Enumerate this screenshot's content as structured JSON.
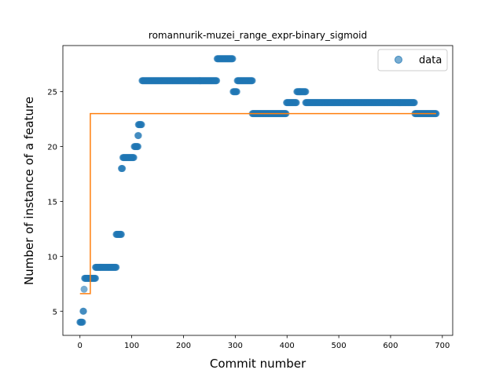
{
  "chart_data": {
    "type": "scatter",
    "title": "romannurik-muzei_range_expr-binary_sigmoid",
    "xlabel": "Commit number",
    "ylabel": "Number of instance of a feature",
    "xlim": [
      -33,
      720
    ],
    "ylim": [
      2.8,
      29.2
    ],
    "x_ticks": [
      0,
      100,
      200,
      300,
      400,
      500,
      600,
      700
    ],
    "y_ticks": [
      5,
      10,
      15,
      20,
      25
    ],
    "grid": false,
    "legend": {
      "position": "top-right",
      "entries": [
        "data"
      ]
    },
    "colors": {
      "data": "#1f77b4",
      "fit": "#ff7f0e"
    },
    "series": [
      {
        "name": "data",
        "kind": "scatter",
        "segments": [
          {
            "x_start": 0,
            "x_end": 5,
            "y": 4
          },
          {
            "x_start": 6,
            "x_end": 7,
            "y": 5
          },
          {
            "x_start": 8,
            "x_end": 8,
            "y": 7
          },
          {
            "x_start": 9,
            "x_end": 30,
            "y": 8
          },
          {
            "x_start": 30,
            "x_end": 70,
            "y": 9
          },
          {
            "x_start": 70,
            "x_end": 80,
            "y": 12
          },
          {
            "x_start": 80,
            "x_end": 82,
            "y": 18
          },
          {
            "x_start": 83,
            "x_end": 104,
            "y": 19
          },
          {
            "x_start": 105,
            "x_end": 112,
            "y": 20
          },
          {
            "x_start": 112,
            "x_end": 113,
            "y": 21
          },
          {
            "x_start": 113,
            "x_end": 119,
            "y": 22
          },
          {
            "x_start": 120,
            "x_end": 264,
            "y": 26
          },
          {
            "x_start": 265,
            "x_end": 295,
            "y": 28
          },
          {
            "x_start": 296,
            "x_end": 303,
            "y": 25
          },
          {
            "x_start": 304,
            "x_end": 333,
            "y": 26
          },
          {
            "x_start": 333,
            "x_end": 398,
            "y": 23
          },
          {
            "x_start": 399,
            "x_end": 418,
            "y": 24
          },
          {
            "x_start": 419,
            "x_end": 436,
            "y": 25
          },
          {
            "x_start": 436,
            "x_end": 646,
            "y": 24
          },
          {
            "x_start": 647,
            "x_end": 688,
            "y": 23
          }
        ]
      },
      {
        "name": "fit",
        "kind": "line",
        "x": [
          0,
          20,
          20,
          688
        ],
        "y": [
          6.6,
          6.6,
          23.0,
          23.0
        ]
      }
    ]
  }
}
